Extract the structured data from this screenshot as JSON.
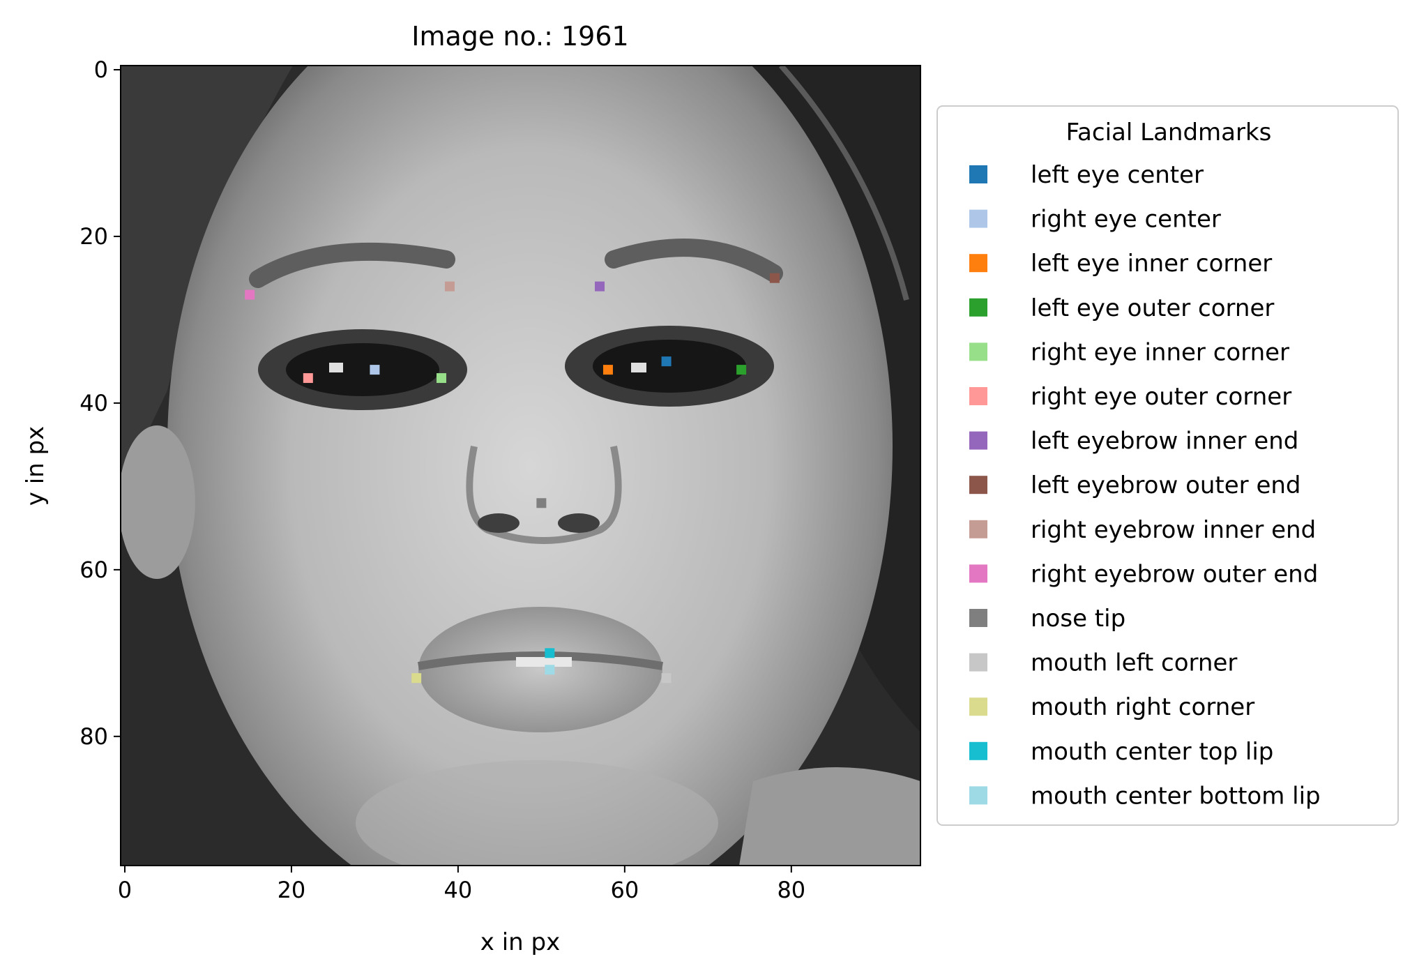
{
  "chart_data": {
    "type": "scatter",
    "title": "Image no.: 1961",
    "xlabel": "x in px",
    "ylabel": "y in px",
    "xlim": [
      -0.5,
      95.5
    ],
    "ylim": [
      95.5,
      -0.5
    ],
    "xticks": [
      0,
      20,
      40,
      60,
      80
    ],
    "yticks": [
      0,
      20,
      40,
      60,
      80
    ],
    "background": "96x96 grayscale face image",
    "grid": false,
    "legend": {
      "title": "Facial Landmarks",
      "position": "outside-right"
    },
    "series": [
      {
        "name": "left eye center",
        "color": "#1f77b4",
        "x": 65,
        "y": 35
      },
      {
        "name": "right eye center",
        "color": "#aec7e8",
        "x": 30,
        "y": 36
      },
      {
        "name": "left eye inner corner",
        "color": "#ff7f0e",
        "x": 58,
        "y": 36
      },
      {
        "name": "left eye outer corner",
        "color": "#2ca02c",
        "x": 74,
        "y": 36
      },
      {
        "name": "right eye inner corner",
        "color": "#98df8a",
        "x": 38,
        "y": 37
      },
      {
        "name": "right eye outer corner",
        "color": "#ff9896",
        "x": 22,
        "y": 37
      },
      {
        "name": "left eyebrow inner end",
        "color": "#9467bd",
        "x": 57,
        "y": 26
      },
      {
        "name": "left eyebrow outer end",
        "color": "#8c564b",
        "x": 78,
        "y": 25
      },
      {
        "name": "right eyebrow inner end",
        "color": "#c49c94",
        "x": 39,
        "y": 26
      },
      {
        "name": "right eyebrow outer end",
        "color": "#e377c2",
        "x": 15,
        "y": 27
      },
      {
        "name": "nose tip",
        "color": "#7f7f7f",
        "x": 50,
        "y": 52
      },
      {
        "name": "mouth left corner",
        "color": "#c7c7c7",
        "x": 65,
        "y": 73
      },
      {
        "name": "mouth right corner",
        "color": "#dbdb8d",
        "x": 35,
        "y": 73
      },
      {
        "name": "mouth center top lip",
        "color": "#17becf",
        "x": 51,
        "y": 70
      },
      {
        "name": "mouth center bottom lip",
        "color": "#9edae5",
        "x": 51,
        "y": 72
      }
    ]
  }
}
